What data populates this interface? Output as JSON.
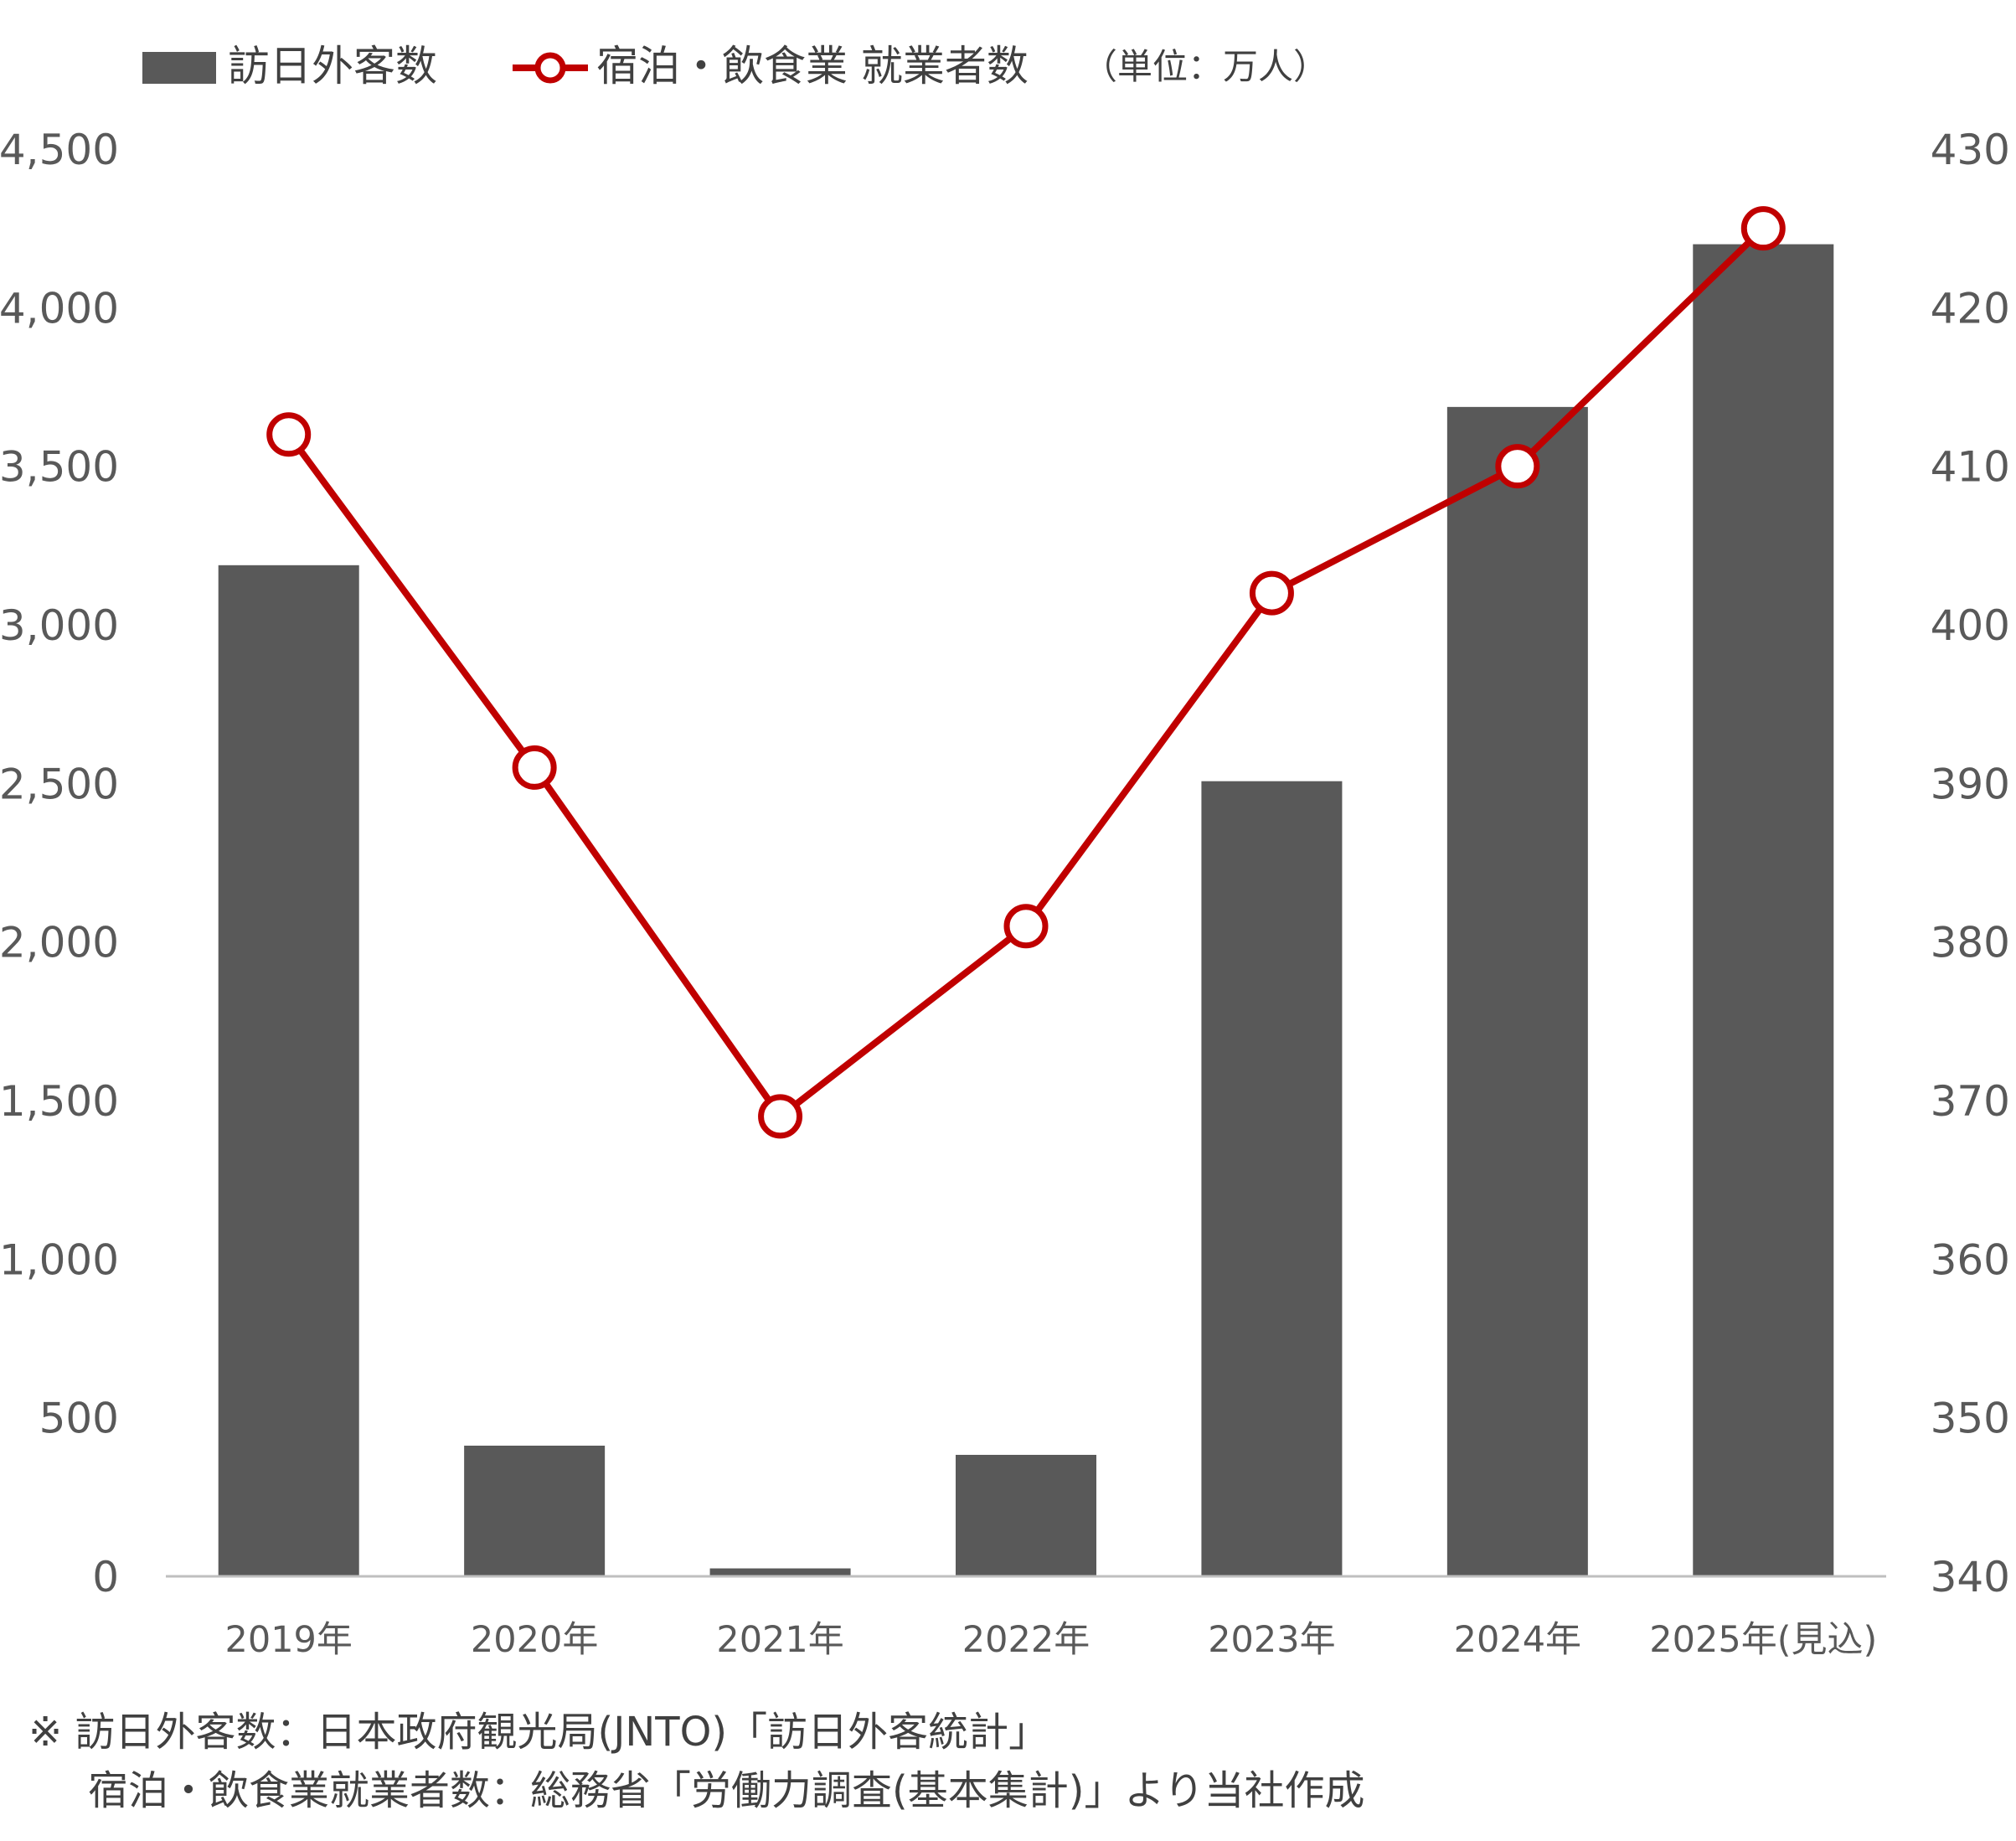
{
  "chart_data": {
    "type": "bar",
    "categories": [
      "2019年",
      "2020年",
      "2021年",
      "2022年",
      "2023年",
      "2024年",
      "2025年(見込)"
    ],
    "series": [
      {
        "name": "訪日外客数",
        "type": "bar",
        "axis": "left",
        "color": "#595959",
        "values": [
          3188,
          412,
          25,
          383,
          2507,
          3687,
          4200
        ]
      },
      {
        "name": "宿泊・飲食業 就業者数",
        "type": "line",
        "axis": "right",
        "color": "#c00000",
        "values": [
          412,
          391,
          369,
          381,
          402,
          410,
          425
        ]
      }
    ],
    "y_left": {
      "min": 0,
      "max": 4500,
      "ticks": [
        "4,500",
        "4,000",
        "3,500",
        "3,000",
        "2,500",
        "2,000",
        "1,500",
        "1,000",
        "500",
        "0"
      ]
    },
    "y_right": {
      "min": 340,
      "max": 430,
      "ticks": [
        "430",
        "420",
        "410",
        "400",
        "390",
        "380",
        "370",
        "360",
        "350",
        "340"
      ]
    },
    "unit_label": "（単位：万人）",
    "legend_position": "top-left",
    "grid": false
  },
  "footnotes": {
    "line1": "※ 訪日外客数：日本政府観光局(JNTO)「訪日外客統計」",
    "line2": "宿泊・飲食業就業者数：総務省「労働力調査(基本集計)」より当社作成"
  }
}
